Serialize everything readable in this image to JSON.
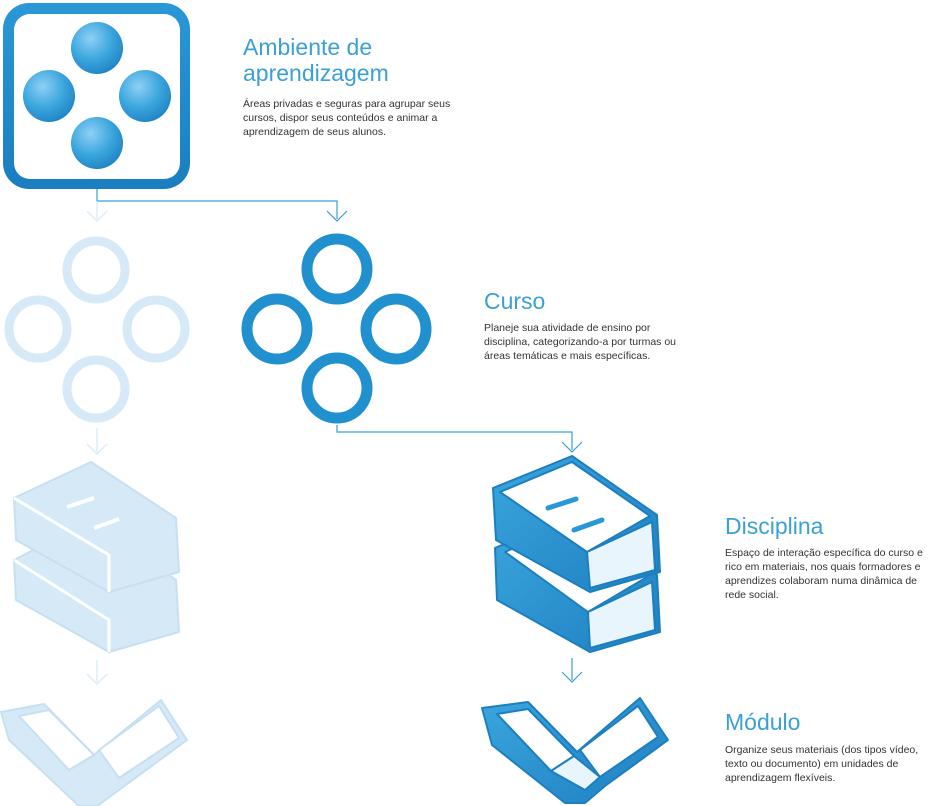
{
  "levels": [
    {
      "key": "ambiente",
      "title": "Ambiente de aprendizagem",
      "description": "Áreas privadas e seguras para agrupar seus cursos, dispor seus conteúdos e animar a aprendizagem de seus alunos.",
      "icon": "four-dots-icon"
    },
    {
      "key": "curso",
      "title": "Curso",
      "description": "Planeje sua atividade de ensino por disciplina, categorizando-a por turmas ou áreas temáticas e mais específicas.",
      "icon": "four-rings-icon"
    },
    {
      "key": "disciplina",
      "title": "Disciplina",
      "description": "Espaço de interação específica do curso e rico em materiais, nos quais formadores e aprendizes colaboram numa dinâmica de rede social.",
      "icon": "stacked-books-icon"
    },
    {
      "key": "modulo",
      "title": "Módulo",
      "description": "Organize seus materiais (dos tipos vídeo, texto ou documento) em unidades de aprendizagem flexíveis.",
      "icon": "open-book-icon"
    }
  ],
  "colors": {
    "accent": "#3aa0d6",
    "accent_dark": "#1c7fc0",
    "faded": "#d6e9f6",
    "text": "#333333"
  }
}
